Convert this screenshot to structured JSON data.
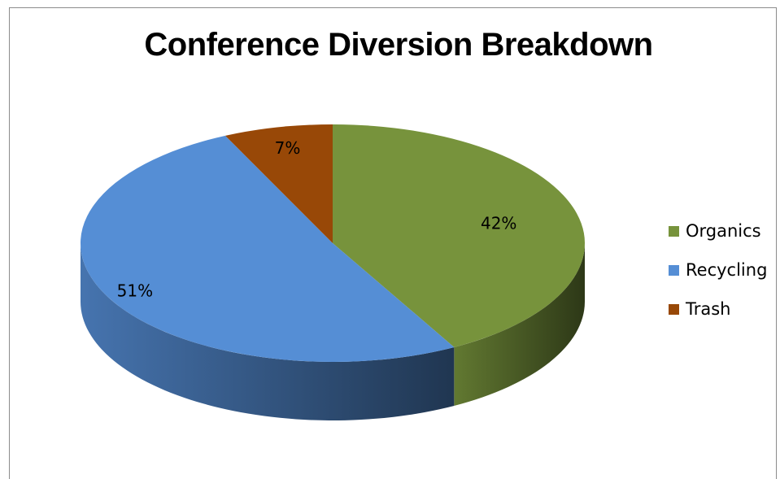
{
  "chart_data": {
    "type": "pie",
    "title": "Conference Diversion Breakdown",
    "style": "3d",
    "legend_position": "right",
    "slices": [
      {
        "label": "Organics",
        "value": 42,
        "data_label": "42%",
        "color": "#77933c"
      },
      {
        "label": "Recycling",
        "value": 51,
        "data_label": "51%",
        "color": "#558ed5"
      },
      {
        "label": "Trash",
        "value": 7,
        "data_label": "7%",
        "color": "#984807"
      }
    ]
  }
}
